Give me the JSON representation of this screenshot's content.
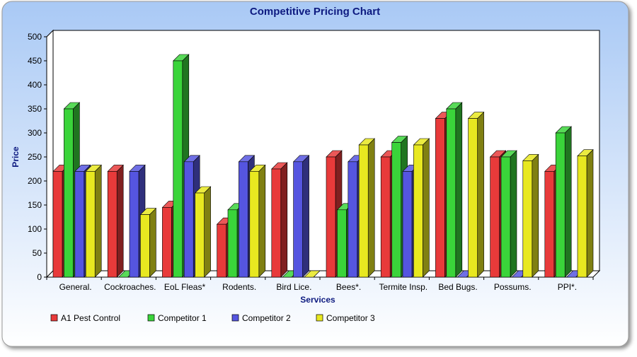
{
  "chart_data": {
    "type": "bar",
    "title": "Competitive Pricing Chart",
    "xlabel": "Services",
    "ylabel": "Price",
    "ylim": [
      0,
      500
    ],
    "yticks": [
      0,
      50,
      100,
      150,
      200,
      250,
      300,
      350,
      400,
      450,
      500
    ],
    "grid": false,
    "legend_position": "bottom-left",
    "categories": [
      "General.",
      "Cockroaches.",
      "EoL Fleas*",
      "Rodents.",
      "Bird Lice.",
      "Bees*.",
      "Termite Insp.",
      "Bed Bugs.",
      "Possums.",
      "PPI*."
    ],
    "series": [
      {
        "name": "A1 Pest Control",
        "color": "#e83a3a",
        "values": [
          220,
          220,
          145,
          110,
          225,
          250,
          250,
          330,
          250,
          220
        ]
      },
      {
        "name": "Competitor 1",
        "color": "#3ad43a",
        "values": [
          350,
          0,
          450,
          140,
          0,
          140,
          280,
          350,
          250,
          300
        ]
      },
      {
        "name": "Competitor 2",
        "color": "#5555e0",
        "values": [
          220,
          220,
          240,
          240,
          240,
          240,
          220,
          0,
          0,
          0
        ]
      },
      {
        "name": "Competitor 3",
        "color": "#e8e820",
        "values": [
          220,
          130,
          175,
          220,
          0,
          275,
          275,
          330,
          242,
          252
        ]
      }
    ]
  }
}
